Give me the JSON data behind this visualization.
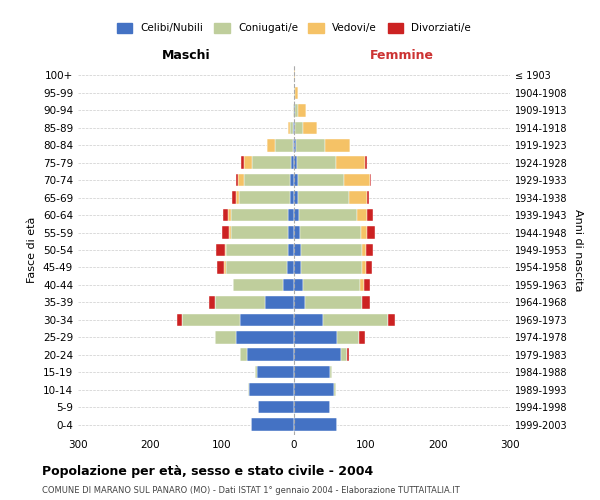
{
  "age_groups": [
    "0-4",
    "5-9",
    "10-14",
    "15-19",
    "20-24",
    "25-29",
    "30-34",
    "35-39",
    "40-44",
    "45-49",
    "50-54",
    "55-59",
    "60-64",
    "65-69",
    "70-74",
    "75-79",
    "80-84",
    "85-89",
    "90-94",
    "95-99",
    "100+"
  ],
  "birth_years": [
    "1999-2003",
    "1994-1998",
    "1989-1993",
    "1984-1988",
    "1979-1983",
    "1974-1978",
    "1969-1973",
    "1964-1968",
    "1959-1963",
    "1954-1958",
    "1949-1953",
    "1944-1948",
    "1939-1943",
    "1934-1938",
    "1929-1933",
    "1924-1928",
    "1919-1923",
    "1914-1918",
    "1909-1913",
    "1904-1908",
    "≤ 1903"
  ],
  "colors": {
    "celibi": "#4472C4",
    "coniugati": "#BFCE9C",
    "vedovi": "#F5C266",
    "divorziati": "#CC2222"
  },
  "males": {
    "celibi": [
      60,
      50,
      62,
      52,
      65,
      80,
      75,
      40,
      15,
      10,
      9,
      8,
      8,
      6,
      5,
      4,
      2,
      1,
      0,
      0,
      0
    ],
    "coniugati": [
      0,
      0,
      2,
      2,
      10,
      30,
      80,
      70,
      70,
      85,
      85,
      80,
      80,
      70,
      65,
      55,
      25,
      5,
      2,
      0,
      0
    ],
    "vedovi": [
      0,
      0,
      0,
      0,
      0,
      0,
      0,
      0,
      0,
      2,
      2,
      2,
      3,
      5,
      8,
      10,
      10,
      3,
      0,
      0,
      0
    ],
    "divorziati": [
      0,
      0,
      0,
      0,
      0,
      0,
      8,
      8,
      0,
      10,
      12,
      10,
      8,
      5,
      3,
      5,
      0,
      0,
      0,
      0,
      0
    ]
  },
  "females": {
    "celibi": [
      60,
      50,
      55,
      50,
      65,
      60,
      40,
      15,
      12,
      10,
      10,
      8,
      7,
      6,
      5,
      4,
      3,
      2,
      1,
      0,
      0
    ],
    "coniugati": [
      0,
      0,
      3,
      3,
      8,
      30,
      90,
      80,
      80,
      85,
      85,
      85,
      80,
      70,
      65,
      55,
      40,
      10,
      5,
      2,
      0
    ],
    "vedovi": [
      0,
      0,
      0,
      0,
      0,
      0,
      0,
      0,
      5,
      5,
      5,
      8,
      15,
      25,
      35,
      40,
      35,
      20,
      10,
      3,
      2
    ],
    "divorziati": [
      0,
      0,
      0,
      0,
      3,
      8,
      10,
      10,
      8,
      8,
      10,
      12,
      8,
      3,
      2,
      2,
      0,
      0,
      0,
      0,
      0
    ]
  },
  "xlim": 300,
  "title": "Popolazione per età, sesso e stato civile - 2004",
  "subtitle": "COMUNE DI MARANO SUL PANARO (MO) - Dati ISTAT 1° gennaio 2004 - Elaborazione TUTTAITALIA.IT",
  "ylabel_left": "Fasce di età",
  "ylabel_right": "Anni di nascita",
  "xlabel_left": "Maschi",
  "xlabel_right": "Femmine",
  "legend_labels": [
    "Celibi/Nubili",
    "Coniugati/e",
    "Vedovi/e",
    "Divorziati/e"
  ],
  "bg_color": "#FFFFFF",
  "grid_color": "#CCCCCC",
  "bar_height": 0.72
}
